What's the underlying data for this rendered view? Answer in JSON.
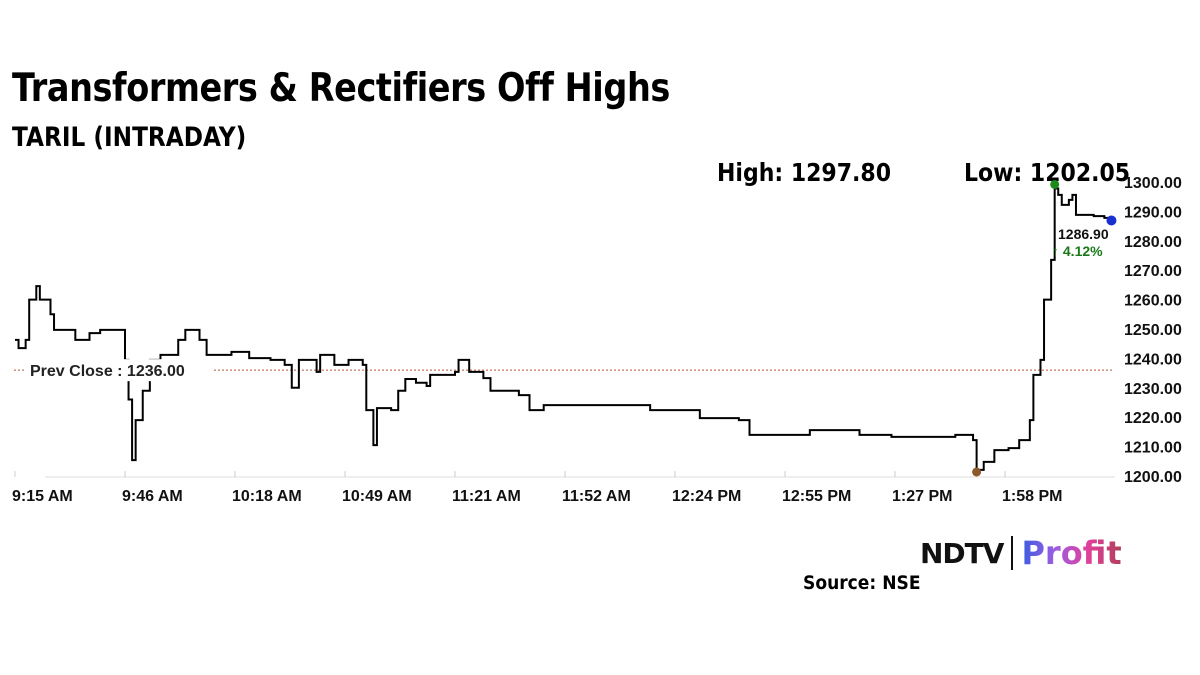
{
  "chart_data": {
    "type": "line",
    "title": "Transformers & Rectifiers Off Highs",
    "subtitle": "TARIL (INTRADAY)",
    "high_label": "High: 1297.80",
    "low_label": "Low: 1202.05",
    "prev_close_label": "Prev Close : 1236.00",
    "prev_close": 1236.0,
    "last_price_label": "1286.90",
    "change_label": "↑ 4.12%",
    "high": 1297.8,
    "low": 1202.05,
    "last": 1286.9,
    "ylim": [
      1200,
      1300
    ],
    "xlim": [
      "9:15",
      "14:24"
    ],
    "y_ticks": [
      "1300.00",
      "1290.00",
      "1280.00",
      "1270.00",
      "1260.00",
      "1250.00",
      "1240.00",
      "1230.00",
      "1220.00",
      "1210.00",
      "1200.00"
    ],
    "x_ticks": [
      "9:15 AM",
      "9:46 AM",
      "10:18 AM",
      "10:49 AM",
      "11:21 AM",
      "11:52 AM",
      "12:24 PM",
      "12:55 PM",
      "1:27 PM",
      "1:58 PM"
    ],
    "grid": false,
    "colors": {
      "line": "#000000",
      "prev_close": "#b5533c",
      "high_marker": "#1a8a1a",
      "low_marker": "#8b5a2b",
      "last_marker": "#1a2fd0",
      "change": "#1a7a1a"
    },
    "series": [
      {
        "x": [
          "9:15",
          "9:16",
          "9:18",
          "9:19",
          "9:21",
          "9:22",
          "9:25",
          "9:26",
          "9:29",
          "9:32",
          "9:36",
          "9:39",
          "9:45",
          "9:46",
          "9:47",
          "9:48",
          "9:49",
          "9:51",
          "9:53",
          "9:56",
          "10:01",
          "10:03",
          "10:07",
          "10:09",
          "10:11",
          "10:16",
          "10:21",
          "10:27",
          "10:31",
          "10:33",
          "10:35",
          "10:40",
          "10:41",
          "10:45",
          "10:49",
          "10:53",
          "10:54",
          "10:56",
          "10:57",
          "11:01",
          "11:03",
          "11:05",
          "11:08",
          "11:11",
          "11:12",
          "11:19",
          "11:20",
          "11:23",
          "11:27",
          "11:29",
          "11:37",
          "11:40",
          "11:44",
          "11:49",
          "11:54",
          "12:03",
          "12:14",
          "12:28",
          "12:39",
          "12:42",
          "12:48",
          "12:53",
          "12:59",
          "13:07",
          "13:13",
          "13:22",
          "13:33",
          "13:40",
          "13:45",
          "13:46",
          "13:48",
          "13:51",
          "13:55",
          "13:58",
          "14:01",
          "14:02",
          "14:04",
          "14:05",
          "14:07",
          "14:08",
          "14:09",
          "14:10",
          "14:12",
          "14:13",
          "14:14",
          "14:17",
          "14:19",
          "14:22",
          "14:24"
        ],
        "y": [
          1246.3,
          1243.5,
          1246.3,
          1260.0,
          1264.6,
          1260.0,
          1255.0,
          1249.7,
          1249.7,
          1246.3,
          1248.6,
          1249.7,
          1249.7,
          1239.5,
          1226.0,
          1205.4,
          1219.0,
          1229.0,
          1239.5,
          1241.2,
          1246.3,
          1249.7,
          1246.3,
          1241.2,
          1241.2,
          1242.2,
          1240.1,
          1239.5,
          1237.8,
          1230.0,
          1239.5,
          1235.4,
          1241.2,
          1237.8,
          1239.5,
          1237.8,
          1222.4,
          1210.5,
          1223.1,
          1222.4,
          1229.0,
          1233.0,
          1231.7,
          1230.6,
          1234.4,
          1235.4,
          1239.5,
          1235.4,
          1233.3,
          1229.0,
          1227.5,
          1222.4,
          1224.1,
          1224.1,
          1224.1,
          1224.1,
          1222.4,
          1219.7,
          1219.0,
          1214.0,
          1214.0,
          1214.0,
          1215.6,
          1215.6,
          1214.0,
          1213.3,
          1213.3,
          1214.0,
          1212.2,
          1202.1,
          1204.8,
          1208.8,
          1209.5,
          1212.2,
          1219.0,
          1234.4,
          1239.5,
          1260.0,
          1273.5,
          1297.8,
          1295.6,
          1292.2,
          1293.9,
          1295.6,
          1288.8,
          1288.8,
          1288.4,
          1287.8,
          1286.9
        ]
      }
    ]
  },
  "branding": {
    "logo": "NDTV Profit",
    "logo_left": "NDTV",
    "logo_right": "Profit"
  },
  "source": "Source: NSE"
}
